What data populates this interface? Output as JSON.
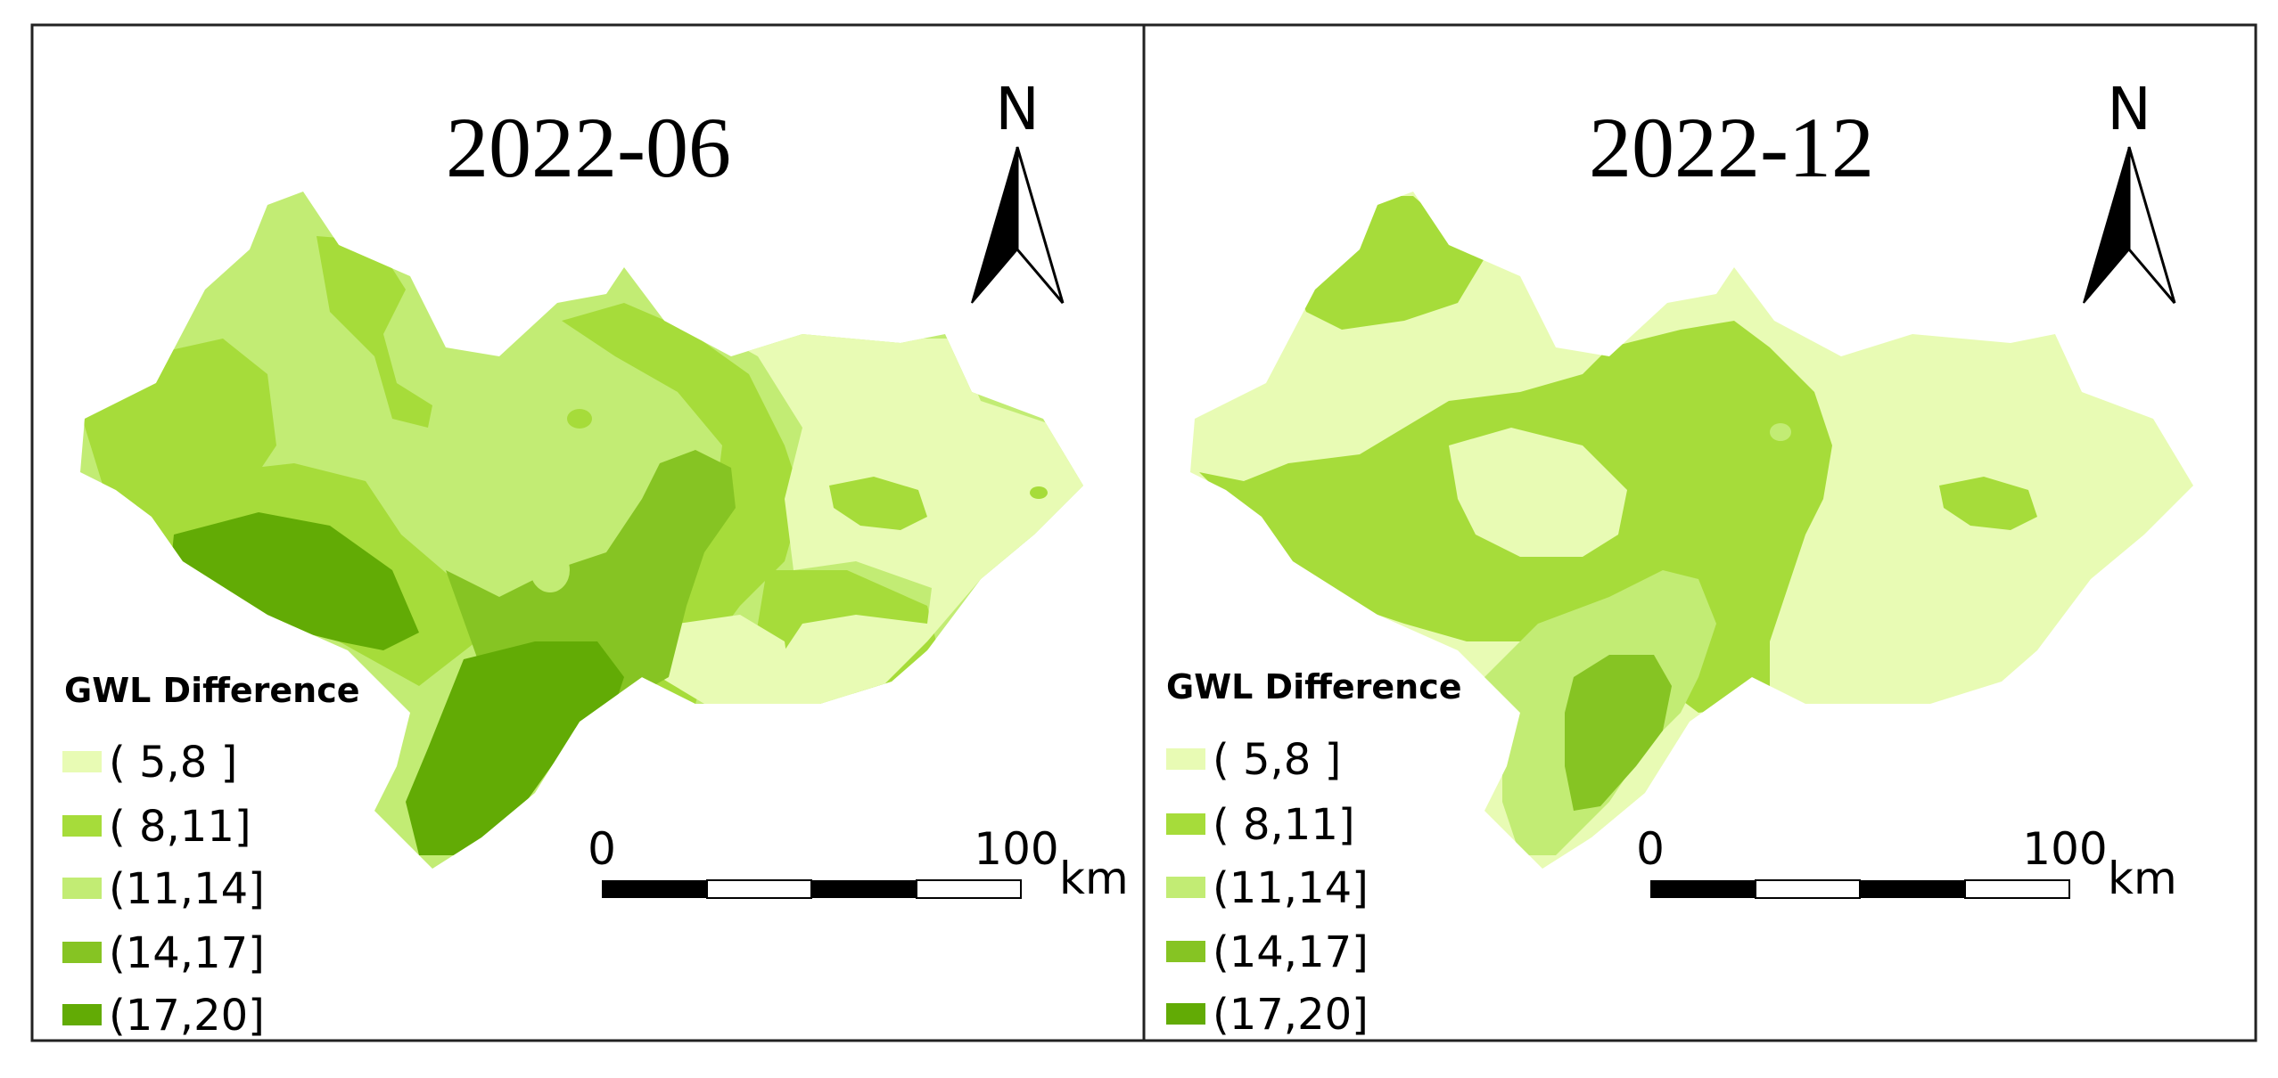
{
  "figure": {
    "panels": [
      {
        "title": "2022-06",
        "legend": {
          "title": "GWL Difference",
          "items": [
            {
              "label": "( 5,8 ]",
              "color": "#e8fbb4"
            },
            {
              "label": "( 8,11]",
              "color": "#a6dc3a"
            },
            {
              "label": "(11,14]",
              "color": "#c2ec74"
            },
            {
              "label": "(14,17]",
              "color": "#86c423"
            },
            {
              "label": "(17,20]",
              "color": "#62ab05"
            }
          ]
        },
        "north_label": "N",
        "scale": {
          "start": "0",
          "end": "100",
          "unit": "km"
        }
      },
      {
        "title": "2022-12",
        "legend": {
          "title": "GWL Difference",
          "items": [
            {
              "label": "( 5,8 ]",
              "color": "#e8fbb4"
            },
            {
              "label": "( 8,11]",
              "color": "#a6dc3a"
            },
            {
              "label": "(11,14]",
              "color": "#c2ec74"
            },
            {
              "label": "(14,17]",
              "color": "#86c423"
            },
            {
              "label": "(17,20]",
              "color": "#62ab05"
            }
          ]
        },
        "north_label": "N",
        "scale": {
          "start": "0",
          "end": "100",
          "unit": "km"
        }
      }
    ]
  }
}
